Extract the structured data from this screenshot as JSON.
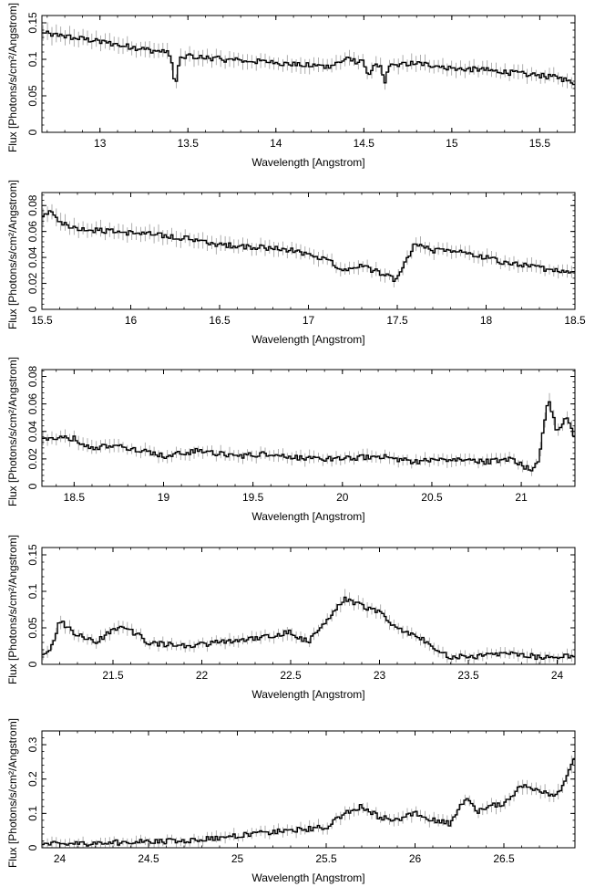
{
  "figure": {
    "colors": {
      "line": "#000000",
      "errorbar": "#9a9a9a",
      "axis": "#000000"
    }
  },
  "chart_data": [
    {
      "type": "line",
      "title": "",
      "xlabel": "Wavelength [Angstrom]",
      "ylabel": "Flux [Photons/s/cm²/Angstrom]",
      "xlim": [
        12.67,
        15.7
      ],
      "ylim": [
        0,
        0.16
      ],
      "xticks": [
        13,
        13.5,
        14,
        14.5,
        15,
        15.5
      ],
      "yticks": [
        0,
        0.05,
        0.1,
        0.15
      ],
      "xtick_labels": [
        "13",
        "13.5",
        "14",
        "14.5",
        "15",
        "15.5"
      ],
      "ytick_labels": [
        "0",
        "0.05",
        "0.1",
        "0.15"
      ],
      "grid": false,
      "series": [
        {
          "x": [
            12.7,
            12.9,
            13.1,
            13.3,
            13.4,
            13.43,
            13.45,
            13.5,
            13.7,
            13.9,
            14.1,
            14.3,
            14.4,
            14.5,
            14.53,
            14.55,
            14.6,
            14.62,
            14.64,
            14.8,
            15.0,
            15.2,
            15.4,
            15.6,
            15.7
          ],
          "y": [
            0.135,
            0.128,
            0.12,
            0.112,
            0.108,
            0.06,
            0.1,
            0.105,
            0.1,
            0.097,
            0.093,
            0.09,
            0.1,
            0.095,
            0.075,
            0.09,
            0.09,
            0.065,
            0.09,
            0.095,
            0.088,
            0.085,
            0.08,
            0.075,
            0.068
          ]
        }
      ]
    },
    {
      "type": "line",
      "title": "",
      "xlabel": "Wavelength [Angstrom]",
      "ylabel": "Flux [Photons/s/cm²/Angstrom]",
      "xlim": [
        15.5,
        18.5
      ],
      "ylim": [
        0,
        0.09
      ],
      "xticks": [
        15.5,
        16,
        16.5,
        17,
        17.5,
        18,
        18.5
      ],
      "yticks": [
        0,
        0.02,
        0.04,
        0.06,
        0.08
      ],
      "xtick_labels": [
        "15.5",
        "16",
        "16.5",
        "17",
        "17.5",
        "18",
        "18.5"
      ],
      "ytick_labels": [
        "0",
        "0.02",
        "0.04",
        "0.06",
        "0.08"
      ],
      "grid": false,
      "series": [
        {
          "x": [
            15.5,
            15.55,
            15.6,
            15.7,
            15.9,
            16.1,
            16.3,
            16.5,
            16.7,
            16.9,
            17.1,
            17.2,
            17.3,
            17.4,
            17.5,
            17.52,
            17.6,
            17.7,
            17.8,
            17.9,
            18.0,
            18.1,
            18.2,
            18.3,
            18.4,
            18.5
          ],
          "y": [
            0.07,
            0.078,
            0.068,
            0.062,
            0.06,
            0.058,
            0.055,
            0.05,
            0.048,
            0.046,
            0.038,
            0.03,
            0.034,
            0.028,
            0.022,
            0.03,
            0.05,
            0.045,
            0.046,
            0.042,
            0.04,
            0.036,
            0.034,
            0.032,
            0.03,
            0.03
          ]
        }
      ]
    },
    {
      "type": "line",
      "title": "",
      "xlabel": "Wavelength [Angstrom]",
      "ylabel": "Flux [Photons/s/cm²/Angstrom]",
      "xlim": [
        18.32,
        21.3
      ],
      "ylim": [
        0,
        0.085
      ],
      "xticks": [
        18.5,
        19,
        19.5,
        20,
        20.5,
        21
      ],
      "yticks": [
        0,
        0.02,
        0.04,
        0.06,
        0.08
      ],
      "xtick_labels": [
        "18.5",
        "19",
        "19.5",
        "20",
        "20.5",
        "21"
      ],
      "ytick_labels": [
        "0",
        "0.02",
        "0.04",
        "0.06",
        "0.08"
      ],
      "grid": false,
      "series": [
        {
          "x": [
            18.35,
            18.5,
            18.6,
            18.7,
            18.9,
            19.0,
            19.2,
            19.4,
            19.6,
            19.8,
            20.0,
            20.2,
            20.4,
            20.6,
            20.8,
            20.95,
            21.05,
            21.1,
            21.15,
            21.2,
            21.25,
            21.3
          ],
          "y": [
            0.035,
            0.035,
            0.028,
            0.03,
            0.026,
            0.022,
            0.026,
            0.022,
            0.024,
            0.02,
            0.02,
            0.022,
            0.018,
            0.02,
            0.018,
            0.02,
            0.012,
            0.02,
            0.065,
            0.04,
            0.05,
            0.035
          ]
        }
      ]
    },
    {
      "type": "line",
      "title": "",
      "xlabel": "Wavelength [Angstrom]",
      "ylabel": "Flux [Photons/s/cm²/Angstrom]",
      "xlim": [
        21.1,
        24.1
      ],
      "ylim": [
        0,
        0.16
      ],
      "xticks": [
        21.5,
        22,
        22.5,
        23,
        23.5,
        24
      ],
      "yticks": [
        0,
        0.05,
        0.1,
        0.15
      ],
      "xtick_labels": [
        "21.5",
        "22",
        "22.5",
        "23",
        "23.5",
        "24"
      ],
      "ytick_labels": [
        "0",
        "0.05",
        "0.1",
        "0.15"
      ],
      "grid": false,
      "series": [
        {
          "x": [
            21.12,
            21.15,
            21.2,
            21.3,
            21.4,
            21.55,
            21.7,
            21.9,
            22.1,
            22.3,
            22.5,
            22.6,
            22.7,
            22.8,
            22.9,
            23.0,
            23.1,
            23.2,
            23.3,
            23.4,
            23.5,
            23.7,
            23.9,
            24.1
          ],
          "y": [
            0.015,
            0.02,
            0.06,
            0.04,
            0.03,
            0.055,
            0.03,
            0.025,
            0.03,
            0.035,
            0.045,
            0.03,
            0.06,
            0.09,
            0.08,
            0.07,
            0.05,
            0.04,
            0.025,
            0.01,
            0.01,
            0.015,
            0.01,
            0.012
          ]
        }
      ]
    },
    {
      "type": "line",
      "title": "",
      "xlabel": "Wavelength [Angstrom]",
      "ylabel": "Flux [Photons/s/cm²/Angstrom]",
      "xlim": [
        23.9,
        26.9
      ],
      "ylim": [
        0,
        0.34
      ],
      "xticks": [
        24,
        24.5,
        25,
        25.5,
        26,
        26.5
      ],
      "yticks": [
        0,
        0.1,
        0.2,
        0.3
      ],
      "xtick_labels": [
        "24",
        "24.5",
        "25",
        "25.5",
        "26",
        "26.5"
      ],
      "ytick_labels": [
        "0",
        "0.1",
        "0.2",
        "0.3"
      ],
      "grid": false,
      "series": [
        {
          "x": [
            23.9,
            24.1,
            24.3,
            24.5,
            24.7,
            24.9,
            25.1,
            25.3,
            25.5,
            25.6,
            25.7,
            25.8,
            25.9,
            26.0,
            26.1,
            26.2,
            26.25,
            26.3,
            26.35,
            26.4,
            26.5,
            26.6,
            26.7,
            26.8,
            26.9
          ],
          "y": [
            0.01,
            0.012,
            0.015,
            0.018,
            0.02,
            0.03,
            0.04,
            0.05,
            0.06,
            0.1,
            0.12,
            0.09,
            0.08,
            0.1,
            0.08,
            0.07,
            0.12,
            0.14,
            0.1,
            0.12,
            0.13,
            0.18,
            0.17,
            0.15,
            0.26
          ]
        }
      ]
    }
  ]
}
